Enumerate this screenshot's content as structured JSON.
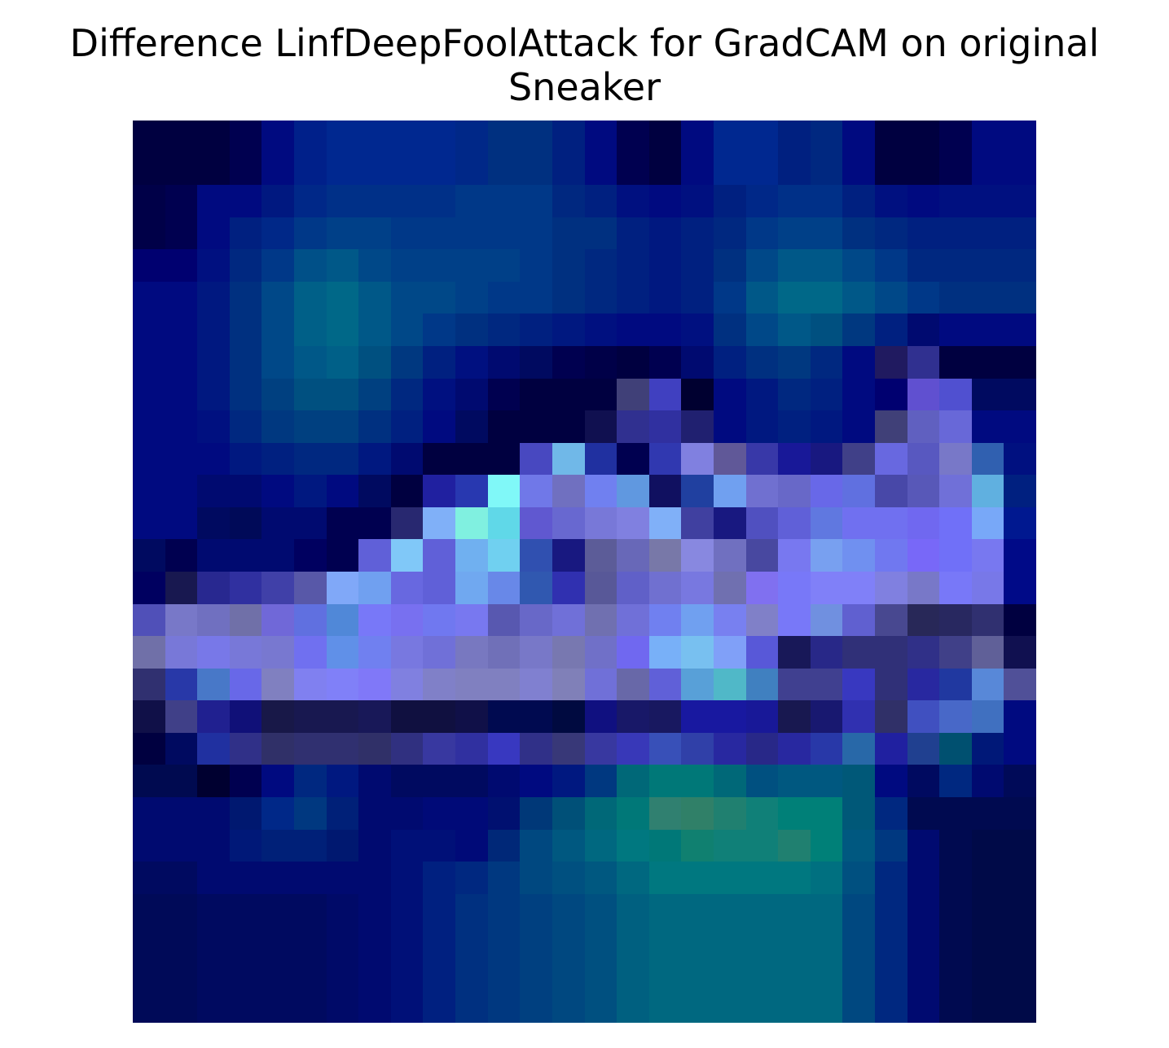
{
  "chart_data": {
    "type": "heatmap",
    "title_lines": [
      "Difference LinfDeepFoolAttack for GradCAM on original",
      "Sneaker"
    ],
    "rows": 28,
    "cols": 28,
    "axes_visible": false,
    "cells": [
      [
        "#000040",
        "#000040",
        "#000040",
        "#000050",
        "#000a80",
        "#00208a",
        "#002890",
        "#002890",
        "#002890",
        "#002890",
        "#002888",
        "#003080",
        "#003080",
        "#002080",
        "#000a80",
        "#000050",
        "#000040",
        "#000a80",
        "#002890",
        "#002890",
        "#002080",
        "#002880",
        "#000a80",
        "#000040",
        "#000040",
        "#000050",
        "#000a80",
        "#000a80"
      ],
      [
        "#000040",
        "#000040",
        "#000040",
        "#000050",
        "#000a80",
        "#00208a",
        "#002890",
        "#002890",
        "#002890",
        "#002890",
        "#002888",
        "#003080",
        "#003080",
        "#002080",
        "#000a80",
        "#000050",
        "#000040",
        "#000a80",
        "#002890",
        "#002890",
        "#002080",
        "#002880",
        "#000a80",
        "#000040",
        "#000040",
        "#000050",
        "#000a80",
        "#000a80"
      ],
      [
        "#000048",
        "#000050",
        "#000a80",
        "#000a80",
        "#001880",
        "#002888",
        "#003088",
        "#003088",
        "#003088",
        "#003088",
        "#003888",
        "#003888",
        "#003888",
        "#002880",
        "#002080",
        "#001080",
        "#000a80",
        "#001080",
        "#002080",
        "#002888",
        "#003088",
        "#003088",
        "#002080",
        "#001080",
        "#000a80",
        "#001080",
        "#001080",
        "#001080"
      ],
      [
        "#000048",
        "#000050",
        "#000a80",
        "#002080",
        "#002888",
        "#003888",
        "#004088",
        "#004088",
        "#003888",
        "#003888",
        "#003888",
        "#003888",
        "#003888",
        "#003080",
        "#003080",
        "#002080",
        "#001880",
        "#002080",
        "#002880",
        "#003888",
        "#004088",
        "#004088",
        "#003080",
        "#002880",
        "#002080",
        "#002080",
        "#002080",
        "#002080"
      ],
      [
        "#000070",
        "#000070",
        "#001080",
        "#002880",
        "#003888",
        "#005088",
        "#005888",
        "#004888",
        "#004088",
        "#004088",
        "#004088",
        "#004088",
        "#003888",
        "#003080",
        "#002880",
        "#002080",
        "#001880",
        "#002080",
        "#003080",
        "#004888",
        "#005888",
        "#005888",
        "#004888",
        "#003888",
        "#002880",
        "#002880",
        "#002880",
        "#002880"
      ],
      [
        "#000a80",
        "#000a80",
        "#001880",
        "#003080",
        "#004888",
        "#006088",
        "#006888",
        "#005888",
        "#004888",
        "#004888",
        "#004088",
        "#003888",
        "#003888",
        "#003080",
        "#002880",
        "#002080",
        "#001880",
        "#002080",
        "#003888",
        "#005888",
        "#006888",
        "#006888",
        "#005888",
        "#004888",
        "#003888",
        "#003080",
        "#003080",
        "#003080"
      ],
      [
        "#000a80",
        "#000a80",
        "#001880",
        "#003080",
        "#004888",
        "#006088",
        "#006888",
        "#005888",
        "#004888",
        "#003888",
        "#003080",
        "#002880",
        "#002080",
        "#001880",
        "#001080",
        "#000a80",
        "#000a80",
        "#001080",
        "#003080",
        "#004888",
        "#005888",
        "#005080",
        "#003880",
        "#002080",
        "#000a70",
        "#000a80",
        "#000a80",
        "#000a80"
      ],
      [
        "#000a80",
        "#000a80",
        "#001880",
        "#003080",
        "#004888",
        "#005888",
        "#006088",
        "#005080",
        "#003880",
        "#002080",
        "#001080",
        "#000a70",
        "#000a60",
        "#000050",
        "#000048",
        "#000040",
        "#000050",
        "#000a70",
        "#002080",
        "#003080",
        "#003880",
        "#002880",
        "#000a80",
        "#201a60",
        "#303090",
        "#000040",
        "#000040",
        "#000040"
      ],
      [
        "#000a80",
        "#000a80",
        "#001880",
        "#003080",
        "#004080",
        "#005080",
        "#005080",
        "#004080",
        "#002880",
        "#001080",
        "#000a70",
        "#000050",
        "#000040",
        "#000040",
        "#000040",
        "#404078",
        "#4040c0",
        "#000030",
        "#000a80",
        "#001880",
        "#002880",
        "#002080",
        "#000a80",
        "#000070",
        "#6050d0",
        "#5050d0",
        "#000a60",
        "#000a60"
      ],
      [
        "#000a80",
        "#000a80",
        "#001080",
        "#002880",
        "#003880",
        "#004080",
        "#004080",
        "#003080",
        "#002080",
        "#000a80",
        "#000a60",
        "#000040",
        "#000040",
        "#000040",
        "#101050",
        "#303090",
        "#3030a0",
        "#202070",
        "#000a80",
        "#001880",
        "#002080",
        "#001880",
        "#000a80",
        "#404078",
        "#6060c0",
        "#6868d8",
        "#000a80",
        "#000a80"
      ],
      [
        "#000a80",
        "#000a80",
        "#000a80",
        "#001880",
        "#002080",
        "#002880",
        "#002880",
        "#001880",
        "#000a70",
        "#000040",
        "#000040",
        "#000040",
        "#4848c0",
        "#70b8e8",
        "#2030a0",
        "#000050",
        "#3038b0",
        "#8080e0",
        "#605898",
        "#3838a8",
        "#181898",
        "#181880",
        "#404088",
        "#6868e0",
        "#5858c0",
        "#7878c8",
        "#3060b0",
        "#001080"
      ],
      [
        "#000a80",
        "#000a80",
        "#000a70",
        "#000a70",
        "#000a80",
        "#001880",
        "#000a80",
        "#000a60",
        "#000040",
        "#2020a0",
        "#2838b0",
        "#80f8f8",
        "#7078e8",
        "#7070c0",
        "#7080f0",
        "#6098e0",
        "#101060",
        "#2040a0",
        "#70a0f0",
        "#7070d0",
        "#6868c8",
        "#6868e8",
        "#6070e0",
        "#4848a8",
        "#5858b8",
        "#7070d8",
        "#60b0e0",
        "#002080"
      ],
      [
        "#000a80",
        "#000a80",
        "#000a60",
        "#000a58",
        "#000a70",
        "#000a70",
        "#000050",
        "#000050",
        "#282870",
        "#80b0f8",
        "#80f0e0",
        "#60d8e8",
        "#6058d0",
        "#6868d0",
        "#7878d8",
        "#8080e0",
        "#80b0f8",
        "#4040a0",
        "#181880",
        "#5050c0",
        "#6060d8",
        "#6078e0",
        "#7070f0",
        "#7070f0",
        "#7068f0",
        "#7070f8",
        "#78a8f8",
        "#001890"
      ],
      [
        "#000a60",
        "#000050",
        "#000a70",
        "#000a70",
        "#000a70",
        "#000060",
        "#000050",
        "#6060d8",
        "#80c8f8",
        "#6060d8",
        "#70b0f0",
        "#70d0f0",
        "#3050b0",
        "#181880",
        "#5c5c98",
        "#6868b8",
        "#7878a8",
        "#8888e0",
        "#7070c0",
        "#4848a0",
        "#7878f0",
        "#78a0f0",
        "#7090f0",
        "#7078f0",
        "#7868f8",
        "#7070f8",
        "#7878f0",
        "#000a88"
      ],
      [
        "#000060",
        "#181850",
        "#282890",
        "#3030a0",
        "#4040a8",
        "#5858a8",
        "#80a8f8",
        "#70a0f0",
        "#6868e0",
        "#6060d8",
        "#70a8f0",
        "#6888e8",
        "#3058b0",
        "#3030b0",
        "#585898",
        "#6060c8",
        "#7070d0",
        "#7878e0",
        "#7070b0",
        "#8070f0",
        "#7878f8",
        "#8080f8",
        "#8080f8",
        "#8080e0",
        "#7878c8",
        "#7878f8",
        "#7878e8",
        "#000a88"
      ],
      [
        "#5050b8",
        "#7878c8",
        "#7070c0",
        "#7070a8",
        "#7068d8",
        "#6070e0",
        "#5088d8",
        "#7878f8",
        "#7870f0",
        "#7078f0",
        "#7878f0",
        "#5858b0",
        "#6868c8",
        "#7070d8",
        "#7070b0",
        "#7070d8",
        "#7080f0",
        "#70a0f0",
        "#7880f0",
        "#8080c8",
        "#7878f8",
        "#7090e0",
        "#6060d0",
        "#484890",
        "#282858",
        "#282860",
        "#303070",
        "#000040"
      ],
      [
        "#7070a8",
        "#7878d8",
        "#7878e8",
        "#7878d8",
        "#7878d0",
        "#7070f0",
        "#6090e8",
        "#7080f0",
        "#7878e0",
        "#7070d8",
        "#7878c0",
        "#7070b8",
        "#7878c8",
        "#7878b0",
        "#7070c8",
        "#7068f0",
        "#78b0f8",
        "#78c0f0",
        "#80a0f8",
        "#5858d8",
        "#181858",
        "#282888",
        "#303078",
        "#303078",
        "#303088",
        "#404088",
        "#606098",
        "#101050"
      ],
      [
        "#303070",
        "#2838a8",
        "#4878c8",
        "#6868e8",
        "#8080c0",
        "#8080f0",
        "#8080f8",
        "#8078f8",
        "#8080e0",
        "#8080c8",
        "#8080c0",
        "#8080c0",
        "#8080d0",
        "#8080b8",
        "#7070d8",
        "#6868a8",
        "#6060d8",
        "#58a0d8",
        "#50b8c8",
        "#4080c0",
        "#404090",
        "#404090",
        "#3838c0",
        "#303078",
        "#2828a0",
        "#2038a0",
        "#5888d8",
        "#505098"
      ],
      [
        "#101048",
        "#404088",
        "#202090",
        "#101078",
        "#181848",
        "#181850",
        "#181850",
        "#181858",
        "#101040",
        "#101040",
        "#101048",
        "#000a50",
        "#000a50",
        "#000a40",
        "#101080",
        "#181868",
        "#181860",
        "#1818a0",
        "#1818a0",
        "#181898",
        "#181850",
        "#181870",
        "#3030b0",
        "#303068",
        "#4050c0",
        "#4868c8",
        "#4070c0",
        "#000a80"
      ],
      [
        "#000040",
        "#000a60",
        "#2030a0",
        "#303088",
        "#303068",
        "#303070",
        "#303070",
        "#303068",
        "#303080",
        "#3838a0",
        "#3030a0",
        "#3838c0",
        "#303088",
        "#383878",
        "#3838a0",
        "#3838b8",
        "#3850b8",
        "#3040a8",
        "#2828a0",
        "#282888",
        "#2828a0",
        "#2838a8",
        "#2868a8",
        "#2020a0",
        "#204090",
        "#005070",
        "#001878",
        "#000a80"
      ],
      [
        "#000a50",
        "#000a50",
        "#000030",
        "#000050",
        "#000a80",
        "#002880",
        "#001880",
        "#000a70",
        "#000a60",
        "#000a60",
        "#000a60",
        "#000a70",
        "#000a80",
        "#001880",
        "#003880",
        "#006878",
        "#007878",
        "#007878",
        "#006878",
        "#005080",
        "#005880",
        "#005880",
        "#005878",
        "#000a80",
        "#000a60",
        "#002880",
        "#000a70",
        "#000a58"
      ],
      [
        "#000a70",
        "#000a70",
        "#000a70",
        "#001870",
        "#002888",
        "#003880",
        "#002078",
        "#000a70",
        "#000a70",
        "#000a78",
        "#000a78",
        "#001070",
        "#003878",
        "#005078",
        "#006878",
        "#007878",
        "#308070",
        "#308068",
        "#208070",
        "#108078",
        "#008078",
        "#008078",
        "#005878",
        "#002880",
        "#000a50",
        "#000a50",
        "#000a50",
        "#000a50"
      ],
      [
        "#000a70",
        "#000a70",
        "#000a70",
        "#001878",
        "#002078",
        "#002078",
        "#001870",
        "#000a70",
        "#001078",
        "#001078",
        "#000a78",
        "#002878",
        "#004880",
        "#005880",
        "#006880",
        "#007880",
        "#007878",
        "#108070",
        "#108078",
        "#108078",
        "#208070",
        "#008078",
        "#005880",
        "#003880",
        "#000a70",
        "#000a50",
        "#000a48",
        "#000a48"
      ],
      [
        "#000a60",
        "#000a60",
        "#000a70",
        "#000a70",
        "#000a70",
        "#000a70",
        "#000a70",
        "#000a70",
        "#001078",
        "#002080",
        "#002880",
        "#003880",
        "#004880",
        "#005080",
        "#005880",
        "#006880",
        "#007880",
        "#007880",
        "#007880",
        "#007880",
        "#007880",
        "#007080",
        "#005080",
        "#002880",
        "#000a70",
        "#000a50",
        "#000a48",
        "#000a48"
      ],
      [
        "#000a58",
        "#000a58",
        "#000a60",
        "#000a60",
        "#000a60",
        "#000a60",
        "#000a68",
        "#000a70",
        "#001078",
        "#002080",
        "#003080",
        "#003880",
        "#004080",
        "#004880",
        "#005080",
        "#006080",
        "#006880",
        "#006880",
        "#006880",
        "#006880",
        "#006880",
        "#006880",
        "#004880",
        "#002880",
        "#000a70",
        "#000a50",
        "#000a48",
        "#000a48"
      ],
      [
        "#000a58",
        "#000a58",
        "#000a60",
        "#000a60",
        "#000a60",
        "#000a60",
        "#000a68",
        "#000a70",
        "#001078",
        "#002080",
        "#003080",
        "#003880",
        "#004080",
        "#004880",
        "#005080",
        "#006080",
        "#006880",
        "#006880",
        "#006880",
        "#006880",
        "#006880",
        "#006880",
        "#004880",
        "#002880",
        "#000a70",
        "#000a50",
        "#000a48",
        "#000a48"
      ],
      [
        "#000a58",
        "#000a58",
        "#000a60",
        "#000a60",
        "#000a60",
        "#000a60",
        "#000a68",
        "#000a70",
        "#001078",
        "#002080",
        "#003080",
        "#003880",
        "#004080",
        "#004880",
        "#005080",
        "#006080",
        "#006880",
        "#006880",
        "#006880",
        "#006880",
        "#006880",
        "#006880",
        "#004880",
        "#002880",
        "#000a70",
        "#000a50",
        "#000a48",
        "#000a48"
      ],
      [
        "#000a58",
        "#000a58",
        "#000a60",
        "#000a60",
        "#000a60",
        "#000a60",
        "#000a68",
        "#000a70",
        "#001078",
        "#002080",
        "#003080",
        "#003880",
        "#004080",
        "#004880",
        "#005080",
        "#006080",
        "#006880",
        "#006880",
        "#006880",
        "#006880",
        "#006880",
        "#006880",
        "#004880",
        "#002880",
        "#000a70",
        "#000a50",
        "#000a48",
        "#000a48"
      ]
    ]
  }
}
